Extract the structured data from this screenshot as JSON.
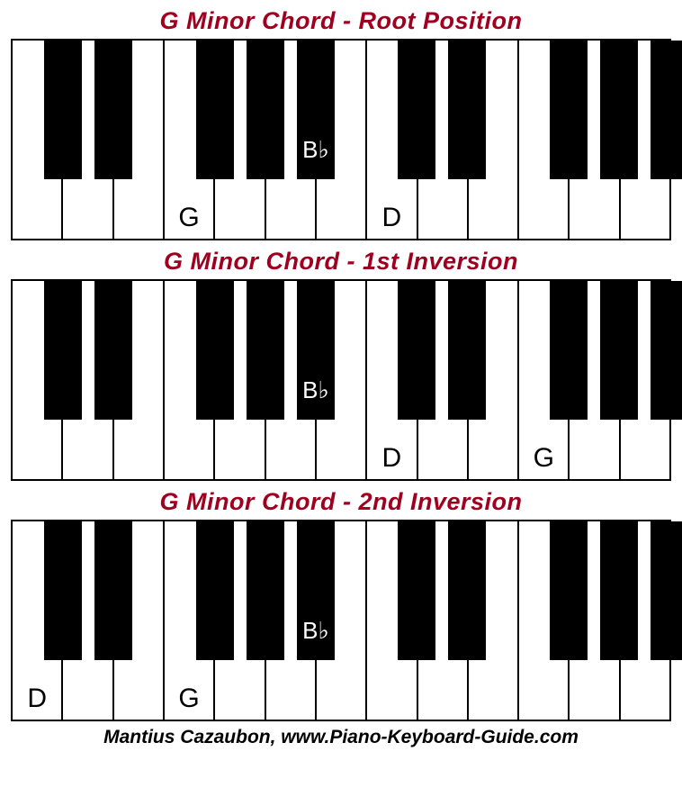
{
  "credit": "Mantius Cazaubon, www.Piano-Keyboard-Guide.com",
  "credit_fontsize": 21,
  "title_color": "#a00020",
  "title_fontsize": 27,
  "keyboard": {
    "white_count": 13,
    "black_at_white_index": [
      0,
      1,
      3,
      4,
      5,
      7,
      8,
      10,
      11,
      12
    ],
    "black_width_ratio": 0.75,
    "black_height_ratio": 0.7,
    "background_color": "#ffffff",
    "key_border_color": "#000000"
  },
  "panels": [
    {
      "title": "G Minor Chord - Root Position",
      "white_labels": [
        {
          "white_index": 3,
          "text": "G"
        },
        {
          "white_index": 7,
          "text": "D"
        }
      ],
      "black_labels": [
        {
          "at_white_index": 5,
          "text": "B♭"
        }
      ]
    },
    {
      "title": "G Minor Chord - 1st Inversion",
      "white_labels": [
        {
          "white_index": 7,
          "text": "D"
        },
        {
          "white_index": 10,
          "text": "G"
        }
      ],
      "black_labels": [
        {
          "at_white_index": 5,
          "text": "B♭"
        }
      ]
    },
    {
      "title": "G Minor Chord - 2nd Inversion",
      "white_labels": [
        {
          "white_index": 0,
          "text": "D"
        },
        {
          "white_index": 3,
          "text": "G"
        }
      ],
      "black_labels": [
        {
          "at_white_index": 5,
          "text": "B♭"
        }
      ]
    }
  ]
}
